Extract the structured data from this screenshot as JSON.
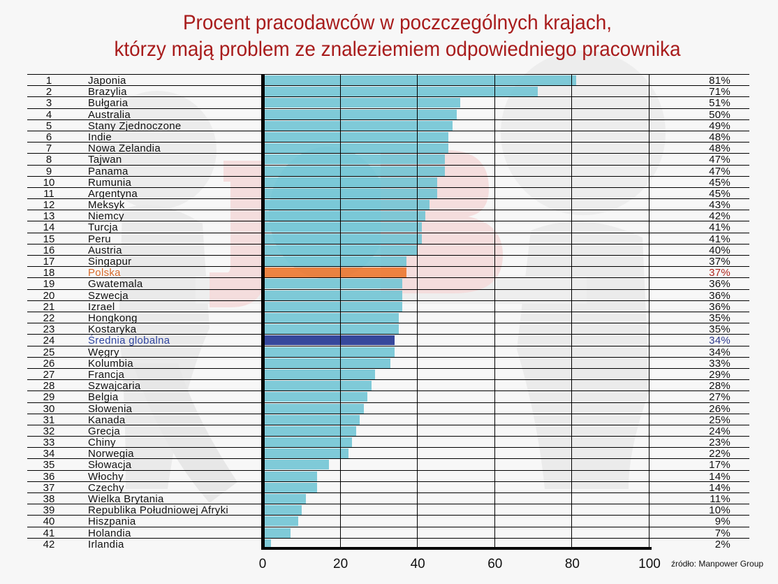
{
  "title": {
    "line1": "Procent pracodawców w poczczególnych krajach,",
    "line2": "którzy mają problem ze znaleziemiem odpowiedniego pracownika"
  },
  "source": "źródło: Manpower Group",
  "colors": {
    "title": "#a81c1c",
    "bar": "#6ec4d4",
    "highlight_bar": "#ec7832",
    "average_bar": "#36489c",
    "highlight_text": "#d86a2a",
    "average_text": "#2f45a0"
  },
  "chart_data": {
    "type": "bar",
    "orientation": "horizontal",
    "title": "Procent pracodawców w poczczególnych krajach, którzy mają problem ze znaleziemiem odpowiedniego pracownika",
    "xlabel": "",
    "ylabel": "",
    "xlim": [
      0,
      100
    ],
    "x_ticks": [
      "0",
      "20",
      "40",
      "60",
      "80",
      "100"
    ],
    "grid": true,
    "legend": null,
    "highlight": {
      "Polska": "orange",
      "Średnia globalna": "dark-blue"
    },
    "rows": [
      {
        "rank": "1",
        "country": "Japonia",
        "value": 81,
        "label": "81%"
      },
      {
        "rank": "2",
        "country": "Brazylia",
        "value": 71,
        "label": "71%"
      },
      {
        "rank": "3",
        "country": "Bułgaria",
        "value": 51,
        "label": "51%"
      },
      {
        "rank": "4",
        "country": "Australia",
        "value": 50,
        "label": "50%"
      },
      {
        "rank": "5",
        "country": "Stany Zjednoczone",
        "value": 49,
        "label": "49%"
      },
      {
        "rank": "6",
        "country": "Indie",
        "value": 48,
        "label": "48%"
      },
      {
        "rank": "7",
        "country": "Nowa Zelandia",
        "value": 48,
        "label": "48%"
      },
      {
        "rank": "8",
        "country": "Tajwan",
        "value": 47,
        "label": "47%"
      },
      {
        "rank": "9",
        "country": "Panama",
        "value": 47,
        "label": "47%"
      },
      {
        "rank": "10",
        "country": "Rumunia",
        "value": 45,
        "label": "45%"
      },
      {
        "rank": "11",
        "country": "Argentyna",
        "value": 45,
        "label": "45%"
      },
      {
        "rank": "12",
        "country": "Meksyk",
        "value": 43,
        "label": "43%"
      },
      {
        "rank": "13",
        "country": "Niemcy",
        "value": 42,
        "label": "42%"
      },
      {
        "rank": "14",
        "country": "Turcja",
        "value": 41,
        "label": "41%"
      },
      {
        "rank": "15",
        "country": "Peru",
        "value": 41,
        "label": "41%"
      },
      {
        "rank": "16",
        "country": "Austria",
        "value": 40,
        "label": "40%"
      },
      {
        "rank": "17",
        "country": "Singapur",
        "value": 37,
        "label": "37%"
      },
      {
        "rank": "18",
        "country": "Polska",
        "value": 37,
        "label": "37%",
        "style": "highlight"
      },
      {
        "rank": "19",
        "country": "Gwatemala",
        "value": 36,
        "label": "36%"
      },
      {
        "rank": "20",
        "country": "Szwecja",
        "value": 36,
        "label": "36%"
      },
      {
        "rank": "21",
        "country": "Izrael",
        "value": 36,
        "label": "36%"
      },
      {
        "rank": "22",
        "country": "Hongkong",
        "value": 35,
        "label": "35%"
      },
      {
        "rank": "23",
        "country": "Kostaryka",
        "value": 35,
        "label": "35%"
      },
      {
        "rank": "24",
        "country": "Średnia globalna",
        "value": 34,
        "label": "34%",
        "style": "average"
      },
      {
        "rank": "25",
        "country": "Węgry",
        "value": 34,
        "label": "34%"
      },
      {
        "rank": "26",
        "country": "Kolumbia",
        "value": 33,
        "label": "33%"
      },
      {
        "rank": "27",
        "country": "Francja",
        "value": 29,
        "label": "29%"
      },
      {
        "rank": "28",
        "country": "Szwajcaria",
        "value": 28,
        "label": "28%"
      },
      {
        "rank": "29",
        "country": "Belgia",
        "value": 27,
        "label": "27%"
      },
      {
        "rank": "30",
        "country": "Słowenia",
        "value": 26,
        "label": "26%"
      },
      {
        "rank": "31",
        "country": "Kanada",
        "value": 25,
        "label": "25%"
      },
      {
        "rank": "32",
        "country": "Grecja",
        "value": 24,
        "label": "24%"
      },
      {
        "rank": "33",
        "country": "Chiny",
        "value": 23,
        "label": "23%"
      },
      {
        "rank": "34",
        "country": "Norwegia",
        "value": 22,
        "label": "22%"
      },
      {
        "rank": "35",
        "country": "Słowacja",
        "value": 17,
        "label": "17%"
      },
      {
        "rank": "36",
        "country": "Włochy",
        "value": 14,
        "label": "14%"
      },
      {
        "rank": "37",
        "country": "Czechy",
        "value": 14,
        "label": "14%"
      },
      {
        "rank": "38",
        "country": "Wielka Brytania",
        "value": 11,
        "label": "11%"
      },
      {
        "rank": "39",
        "country": "Republika Południowej Afryki",
        "value": 10,
        "label": "10%"
      },
      {
        "rank": "40",
        "country": "Hiszpania",
        "value": 9,
        "label": "9%"
      },
      {
        "rank": "41",
        "country": "Holandia",
        "value": 7,
        "label": "7%"
      },
      {
        "rank": "42",
        "country": "Irlandia",
        "value": 2,
        "label": "2%"
      }
    ]
  }
}
